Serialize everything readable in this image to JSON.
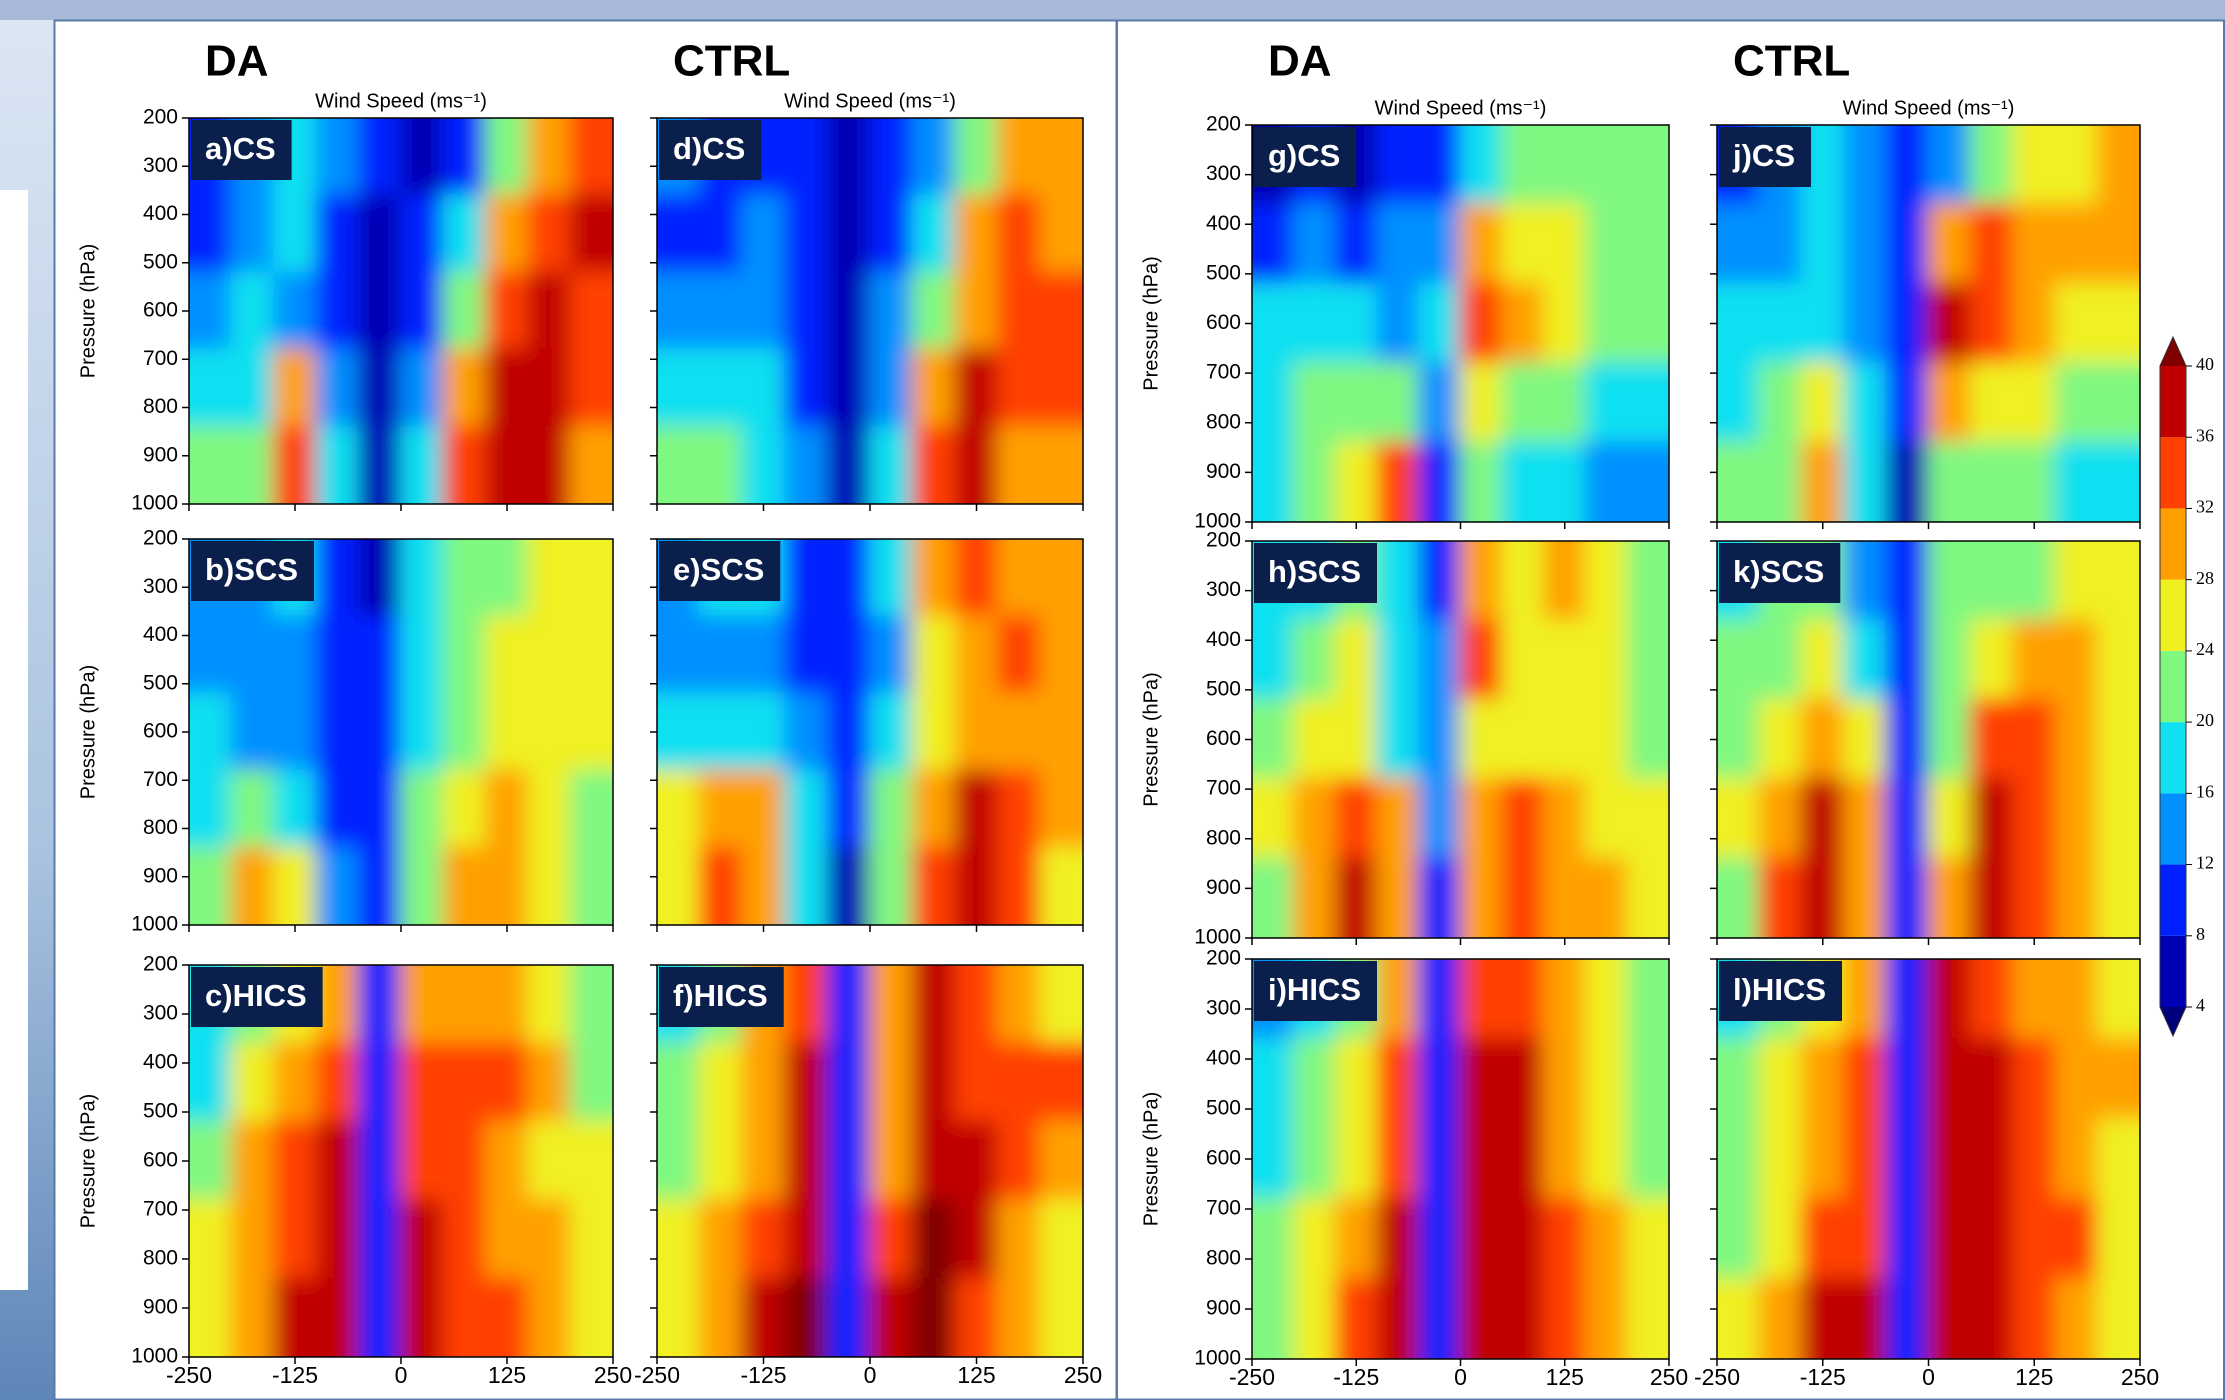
{
  "chart_data": [
    {
      "type": "contour",
      "label": "a)CS",
      "column_title": "DA",
      "xlabel": "Wind Speed (ms⁻¹)",
      "ylabel": "Pressure (hPa)",
      "xlim": [
        -250,
        250
      ],
      "ylim": [
        1000,
        200
      ],
      "xticks": [
        -250,
        -125,
        0,
        125,
        250
      ],
      "yticks": [
        200,
        300,
        400,
        500,
        600,
        700,
        800,
        900,
        1000
      ],
      "show_xticklabels": false,
      "show_yticklabels": true,
      "x": [
        -225,
        -175,
        -125,
        -75,
        -25,
        25,
        75,
        125,
        175,
        225
      ],
      "y": [
        280,
        440,
        600,
        760,
        920
      ],
      "z": [
        [
          10,
          14,
          16,
          12,
          8,
          6,
          10,
          20,
          30,
          32
        ],
        [
          10,
          12,
          16,
          10,
          6,
          8,
          16,
          28,
          34,
          36
        ],
        [
          14,
          16,
          14,
          8,
          6,
          10,
          22,
          34,
          36,
          34
        ],
        [
          18,
          16,
          28,
          14,
          6,
          12,
          30,
          38,
          36,
          32
        ],
        [
          20,
          20,
          34,
          18,
          6,
          16,
          32,
          38,
          36,
          30
        ]
      ]
    },
    {
      "type": "contour",
      "label": "b)SCS",
      "ylabel": "Pressure (hPa)",
      "xlim": [
        -250,
        250
      ],
      "ylim": [
        1000,
        200
      ],
      "xticks": [
        -250,
        -125,
        0,
        125,
        250
      ],
      "yticks": [
        200,
        300,
        400,
        500,
        600,
        700,
        800,
        900,
        1000
      ],
      "show_xticklabels": false,
      "show_yticklabels": true,
      "x": [
        -225,
        -175,
        -125,
        -75,
        -25,
        25,
        75,
        125,
        175,
        225
      ],
      "y": [
        280,
        440,
        600,
        760,
        920
      ],
      "z": [
        [
          14,
          12,
          16,
          8,
          6,
          16,
          22,
          22,
          24,
          24
        ],
        [
          12,
          14,
          12,
          8,
          8,
          16,
          22,
          24,
          24,
          24
        ],
        [
          16,
          14,
          14,
          8,
          10,
          18,
          22,
          24,
          26,
          24
        ],
        [
          16,
          20,
          18,
          10,
          10,
          20,
          24,
          28,
          26,
          22
        ],
        [
          22,
          30,
          24,
          14,
          8,
          20,
          28,
          28,
          24,
          20
        ]
      ]
    },
    {
      "type": "contour",
      "label": "c)HICS",
      "ylabel": "Pressure (hPa)",
      "xlim": [
        -250,
        250
      ],
      "ylim": [
        1000,
        200
      ],
      "xticks": [
        -250,
        -125,
        0,
        125,
        250
      ],
      "yticks": [
        200,
        300,
        400,
        500,
        600,
        700,
        800,
        900,
        1000
      ],
      "show_xticklabels": true,
      "show_yticklabels": true,
      "x": [
        -225,
        -175,
        -125,
        -75,
        -25,
        25,
        75,
        125,
        175,
        225
      ],
      "y": [
        280,
        440,
        600,
        760,
        920
      ],
      "z": [
        [
          16,
          20,
          26,
          30,
          10,
          28,
          30,
          30,
          26,
          22
        ],
        [
          18,
          24,
          30,
          34,
          10,
          32,
          34,
          32,
          28,
          22
        ],
        [
          22,
          28,
          32,
          36,
          10,
          34,
          32,
          28,
          26,
          24
        ],
        [
          26,
          28,
          34,
          38,
          10,
          36,
          32,
          30,
          28,
          24
        ],
        [
          24,
          30,
          38,
          38,
          10,
          38,
          32,
          34,
          30,
          26
        ]
      ]
    },
    {
      "type": "contour",
      "label": "d)CS",
      "column_title": "CTRL",
      "xlabel": "Wind Speed (ms⁻¹)",
      "xlim": [
        -250,
        250
      ],
      "ylim": [
        1000,
        200
      ],
      "xticks": [
        -250,
        -125,
        0,
        125,
        250
      ],
      "yticks": [
        200,
        300,
        400,
        500,
        600,
        700,
        800,
        900,
        1000
      ],
      "show_xticklabels": false,
      "show_yticklabels": false,
      "x": [
        -225,
        -175,
        -125,
        -75,
        -25,
        25,
        75,
        125,
        175,
        225
      ],
      "y": [
        280,
        440,
        600,
        760,
        920
      ],
      "z": [
        [
          12,
          10,
          10,
          8,
          6,
          8,
          14,
          20,
          28,
          30
        ],
        [
          8,
          10,
          12,
          8,
          6,
          10,
          18,
          28,
          32,
          30
        ],
        [
          12,
          14,
          12,
          8,
          6,
          12,
          22,
          30,
          32,
          32
        ],
        [
          18,
          18,
          16,
          10,
          5,
          14,
          28,
          36,
          32,
          34
        ],
        [
          20,
          20,
          18,
          12,
          5,
          16,
          34,
          38,
          30,
          30
        ]
      ]
    },
    {
      "type": "contour",
      "label": "e)SCS",
      "xlim": [
        -250,
        250
      ],
      "ylim": [
        1000,
        200
      ],
      "xticks": [
        -250,
        -125,
        0,
        125,
        250
      ],
      "yticks": [
        200,
        300,
        400,
        500,
        600,
        700,
        800,
        900,
        1000
      ],
      "show_xticklabels": false,
      "show_yticklabels": false,
      "x": [
        -225,
        -175,
        -125,
        -75,
        -25,
        25,
        75,
        125,
        175,
        225
      ],
      "y": [
        280,
        440,
        600,
        760,
        920
      ],
      "z": [
        [
          14,
          16,
          18,
          10,
          8,
          16,
          28,
          32,
          28,
          28
        ],
        [
          14,
          12,
          14,
          10,
          8,
          14,
          26,
          30,
          32,
          28
        ],
        [
          16,
          18,
          16,
          12,
          8,
          16,
          24,
          28,
          30,
          28
        ],
        [
          24,
          30,
          28,
          16,
          8,
          20,
          30,
          36,
          32,
          28
        ],
        [
          26,
          32,
          30,
          16,
          6,
          20,
          32,
          36,
          32,
          24
        ]
      ]
    },
    {
      "type": "contour",
      "label": "f)HICS",
      "xlim": [
        -250,
        250
      ],
      "ylim": [
        1000,
        200
      ],
      "xticks": [
        -250,
        -125,
        0,
        125,
        250
      ],
      "yticks": [
        200,
        300,
        400,
        500,
        600,
        700,
        800,
        900,
        1000
      ],
      "show_xticklabels": true,
      "show_yticklabels": false,
      "x": [
        -225,
        -175,
        -125,
        -75,
        -25,
        25,
        75,
        125,
        175,
        225
      ],
      "y": [
        280,
        440,
        600,
        760,
        920
      ],
      "z": [
        [
          16,
          22,
          28,
          34,
          8,
          28,
          36,
          32,
          30,
          26
        ],
        [
          20,
          24,
          30,
          36,
          8,
          30,
          38,
          34,
          32,
          32
        ],
        [
          22,
          26,
          30,
          36,
          8,
          30,
          38,
          36,
          32,
          30
        ],
        [
          24,
          28,
          34,
          38,
          8,
          34,
          40,
          36,
          30,
          26
        ],
        [
          24,
          30,
          36,
          40,
          8,
          36,
          40,
          34,
          30,
          26
        ]
      ]
    },
    {
      "type": "contour",
      "label": "g)CS",
      "column_title": "DA",
      "xlabel": "Wind Speed (ms⁻¹)",
      "ylabel": "Pressure (hPa)",
      "xlim": [
        -250,
        250
      ],
      "ylim": [
        1000,
        200
      ],
      "xticks": [
        -250,
        -125,
        0,
        125,
        250
      ],
      "yticks": [
        200,
        300,
        400,
        500,
        600,
        700,
        800,
        900,
        1000
      ],
      "show_xticklabels": false,
      "show_yticklabels": true,
      "x": [
        -225,
        -175,
        -125,
        -75,
        -25,
        25,
        75,
        125,
        175,
        225
      ],
      "y": [
        280,
        440,
        600,
        760,
        920
      ],
      "z": [
        [
          6,
          8,
          6,
          8,
          10,
          16,
          20,
          22,
          22,
          22
        ],
        [
          10,
          12,
          10,
          12,
          14,
          28,
          26,
          24,
          22,
          22
        ],
        [
          16,
          18,
          16,
          14,
          16,
          32,
          28,
          24,
          22,
          20
        ],
        [
          18,
          20,
          22,
          20,
          14,
          26,
          22,
          20,
          18,
          16
        ],
        [
          18,
          20,
          24,
          34,
          10,
          20,
          18,
          16,
          14,
          12
        ]
      ]
    },
    {
      "type": "contour",
      "label": "h)SCS",
      "ylabel": "Pressure (hPa)",
      "xlim": [
        -250,
        250
      ],
      "ylim": [
        1000,
        200
      ],
      "xticks": [
        -250,
        -125,
        0,
        125,
        250
      ],
      "yticks": [
        200,
        300,
        400,
        500,
        600,
        700,
        800,
        900,
        1000
      ],
      "show_xticklabels": false,
      "show_yticklabels": true,
      "x": [
        -225,
        -175,
        -125,
        -75,
        -25,
        25,
        75,
        125,
        175,
        225
      ],
      "y": [
        280,
        440,
        600,
        760,
        920
      ],
      "z": [
        [
          16,
          18,
          22,
          16,
          10,
          28,
          24,
          28,
          24,
          22
        ],
        [
          18,
          22,
          24,
          16,
          12,
          34,
          26,
          26,
          24,
          22
        ],
        [
          22,
          24,
          26,
          18,
          12,
          26,
          24,
          26,
          24,
          22
        ],
        [
          24,
          28,
          32,
          28,
          12,
          28,
          32,
          28,
          26,
          24
        ],
        [
          22,
          30,
          38,
          30,
          8,
          30,
          34,
          30,
          28,
          26
        ]
      ]
    },
    {
      "type": "contour",
      "label": "i)HICS",
      "ylabel": "Pressure (hPa)",
      "xlim": [
        -250,
        250
      ],
      "ylim": [
        1000,
        200
      ],
      "xticks": [
        -250,
        -125,
        0,
        125,
        250
      ],
      "yticks": [
        200,
        300,
        400,
        500,
        600,
        700,
        800,
        900,
        1000
      ],
      "show_xticklabels": true,
      "show_yticklabels": true,
      "x": [
        -225,
        -175,
        -125,
        -75,
        -25,
        25,
        75,
        125,
        175,
        225
      ],
      "y": [
        280,
        440,
        600,
        760,
        920
      ],
      "z": [
        [
          14,
          16,
          20,
          30,
          8,
          34,
          34,
          28,
          24,
          20
        ],
        [
          16,
          20,
          24,
          32,
          8,
          36,
          36,
          30,
          24,
          22
        ],
        [
          18,
          22,
          26,
          34,
          8,
          38,
          36,
          30,
          26,
          22
        ],
        [
          20,
          24,
          30,
          36,
          8,
          38,
          38,
          32,
          28,
          24
        ],
        [
          22,
          26,
          34,
          38,
          8,
          38,
          38,
          34,
          30,
          26
        ]
      ]
    },
    {
      "type": "contour",
      "label": "j)CS",
      "column_title": "CTRL",
      "xlabel": "Wind Speed (ms⁻¹)",
      "xlim": [
        -250,
        250
      ],
      "ylim": [
        1000,
        200
      ],
      "xticks": [
        -250,
        -125,
        0,
        125,
        250
      ],
      "yticks": [
        200,
        300,
        400,
        500,
        600,
        700,
        800,
        900,
        1000
      ],
      "show_xticklabels": false,
      "show_yticklabels": false,
      "x": [
        -225,
        -175,
        -125,
        -75,
        -25,
        25,
        75,
        125,
        175,
        225
      ],
      "y": [
        280,
        440,
        600,
        760,
        920
      ],
      "z": [
        [
          10,
          12,
          16,
          14,
          8,
          14,
          20,
          24,
          26,
          28
        ],
        [
          14,
          14,
          16,
          12,
          8,
          30,
          32,
          30,
          28,
          28
        ],
        [
          16,
          16,
          18,
          14,
          8,
          36,
          32,
          28,
          26,
          24
        ],
        [
          18,
          20,
          24,
          16,
          8,
          30,
          26,
          24,
          22,
          20
        ],
        [
          20,
          20,
          28,
          16,
          6,
          20,
          22,
          20,
          18,
          16
        ]
      ]
    },
    {
      "type": "contour",
      "label": "k)SCS",
      "xlim": [
        -250,
        250
      ],
      "ylim": [
        1000,
        200
      ],
      "xticks": [
        -250,
        -125,
        0,
        125,
        250
      ],
      "yticks": [
        200,
        300,
        400,
        500,
        600,
        700,
        800,
        900,
        1000
      ],
      "show_xticklabels": false,
      "show_yticklabels": false,
      "x": [
        -225,
        -175,
        -125,
        -75,
        -25,
        25,
        75,
        125,
        175,
        225
      ],
      "y": [
        280,
        440,
        600,
        760,
        920
      ],
      "z": [
        [
          18,
          20,
          22,
          14,
          8,
          20,
          22,
          22,
          24,
          24
        ],
        [
          20,
          22,
          24,
          18,
          10,
          20,
          26,
          28,
          28,
          24
        ],
        [
          22,
          26,
          30,
          24,
          10,
          20,
          32,
          32,
          28,
          24
        ],
        [
          24,
          30,
          38,
          28,
          8,
          24,
          36,
          34,
          28,
          24
        ],
        [
          22,
          32,
          38,
          30,
          8,
          28,
          38,
          34,
          28,
          24
        ]
      ]
    },
    {
      "type": "contour",
      "label": "l)HICS",
      "xlim": [
        -250,
        250
      ],
      "ylim": [
        1000,
        200
      ],
      "xticks": [
        -250,
        -125,
        0,
        125,
        250
      ],
      "yticks": [
        200,
        300,
        400,
        500,
        600,
        700,
        800,
        900,
        1000
      ],
      "show_xticklabels": true,
      "show_yticklabels": false,
      "x": [
        -225,
        -175,
        -125,
        -75,
        -25,
        25,
        75,
        125,
        175,
        225
      ],
      "y": [
        280,
        440,
        600,
        760,
        920
      ],
      "z": [
        [
          18,
          22,
          26,
          30,
          8,
          36,
          34,
          30,
          28,
          24
        ],
        [
          20,
          24,
          28,
          32,
          8,
          38,
          36,
          32,
          30,
          28
        ],
        [
          20,
          24,
          30,
          32,
          8,
          38,
          36,
          34,
          30,
          26
        ],
        [
          22,
          26,
          32,
          34,
          8,
          38,
          38,
          34,
          32,
          26
        ],
        [
          24,
          28,
          36,
          36,
          8,
          38,
          38,
          34,
          30,
          26
        ]
      ]
    },
    {
      "type": "colorbar",
      "ticks": [
        4,
        8,
        12,
        16,
        20,
        24,
        28,
        32,
        36,
        40
      ],
      "colors": [
        "#00007a",
        "#0000b4",
        "#0020ff",
        "#0090ff",
        "#10e0f0",
        "#80f880",
        "#f0f020",
        "#ffa000",
        "#ff4000",
        "#c00000",
        "#800000"
      ]
    }
  ]
}
